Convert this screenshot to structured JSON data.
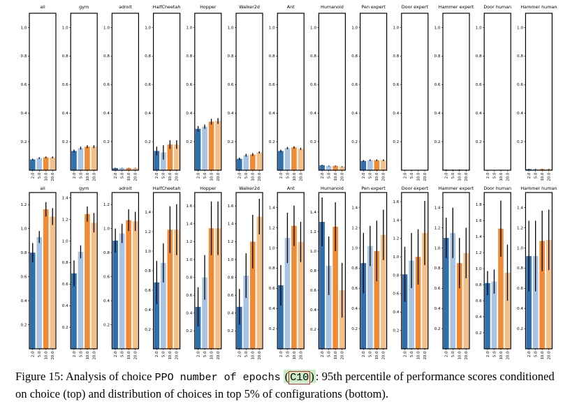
{
  "caption": {
    "lead": "Figure 15: Analysis of choice ",
    "choice_name": "PPO number of epochs",
    "paren_open": "(",
    "choice_id": "C10",
    "paren_close": ")",
    "rest": ": 95th percentile of performance scores conditioned on choice (top) and distribution of choices in top 5% of configurations (bottom)."
  },
  "colors": [
    "#2f6fae",
    "#a9c4e3",
    "#ef8b34",
    "#f4bf88"
  ],
  "chart_data": [
    {
      "row": "top",
      "type": "bar",
      "categories": [
        "2.0",
        "5.0",
        "10.0",
        "20.0"
      ],
      "yticks": [
        0.2,
        0.4,
        0.6,
        0.8,
        1.0
      ],
      "ylim": [
        0,
        1.1
      ],
      "panels": [
        {
          "title": "all",
          "values": [
            0.075,
            0.085,
            0.09,
            0.09
          ],
          "err": [
            0.006,
            0.006,
            0.006,
            0.006
          ]
        },
        {
          "title": "gym",
          "values": [
            0.135,
            0.155,
            0.165,
            0.165
          ],
          "err": [
            0.01,
            0.01,
            0.01,
            0.01
          ]
        },
        {
          "title": "adroit",
          "values": [
            0.015,
            0.015,
            0.015,
            0.015
          ],
          "err": [
            0.002,
            0.002,
            0.002,
            0.002
          ]
        },
        {
          "title": "HalfCheetah",
          "values": [
            0.135,
            0.125,
            0.18,
            0.18
          ],
          "err": [
            0.03,
            0.05,
            0.03,
            0.03
          ]
        },
        {
          "title": "Hopper",
          "values": [
            0.29,
            0.305,
            0.34,
            0.345
          ],
          "err": [
            0.02,
            0.015,
            0.02,
            0.02
          ]
        },
        {
          "title": "Walker2d",
          "values": [
            0.08,
            0.105,
            0.11,
            0.125
          ],
          "err": [
            0.008,
            0.01,
            0.01,
            0.008
          ]
        },
        {
          "title": "Ant",
          "values": [
            0.135,
            0.155,
            0.16,
            0.15
          ],
          "err": [
            0.008,
            0.008,
            0.008,
            0.008
          ]
        },
        {
          "title": "Humanoid",
          "values": [
            0.035,
            0.03,
            0.03,
            0.025
          ],
          "err": [
            0.003,
            0.003,
            0.003,
            0.003
          ]
        },
        {
          "title": "Pen expert",
          "values": [
            0.065,
            0.07,
            0.07,
            0.07
          ],
          "err": [
            0.006,
            0.006,
            0.006,
            0.006
          ]
        },
        {
          "title": "Door expert",
          "values": [
            0.002,
            0.002,
            0.002,
            0.002
          ],
          "err": [
            0,
            0,
            0,
            0
          ]
        },
        {
          "title": "Hammer expert",
          "values": [
            0.004,
            0.004,
            0.004,
            0.004
          ],
          "err": [
            0.001,
            0.001,
            0.001,
            0.001
          ]
        },
        {
          "title": "Door human",
          "values": [
            0.002,
            0.002,
            0.003,
            0.002
          ],
          "err": [
            0,
            0,
            0,
            0
          ]
        },
        {
          "title": "Hammer human",
          "values": [
            0.008,
            0.008,
            0.008,
            0.008
          ],
          "err": [
            0.002,
            0.002,
            0.002,
            0.002
          ]
        }
      ]
    },
    {
      "row": "bottom",
      "type": "bar",
      "categories": [
        "2.0",
        "5.0",
        "10.0",
        "20.0"
      ],
      "panels": [
        {
          "title": "all",
          "yticks": [
            0.2,
            0.4,
            0.6,
            0.8,
            1.0,
            1.2
          ],
          "ymax": 1.3,
          "values": [
            0.8,
            0.93,
            1.16,
            1.1
          ],
          "err": [
            0.08,
            0.05,
            0.06,
            0.07
          ]
        },
        {
          "title": "gym",
          "yticks": [
            0.2,
            0.4,
            0.6,
            0.8,
            1.0,
            1.2,
            1.4
          ],
          "ymax": 1.45,
          "values": [
            0.7,
            0.9,
            1.25,
            1.17
          ],
          "err": [
            0.12,
            0.06,
            0.07,
            0.09
          ]
        },
        {
          "title": "adroit",
          "yticks": [
            0.2,
            0.4,
            0.6,
            0.8,
            1.0,
            1.2
          ],
          "ymax": 1.3,
          "values": [
            0.9,
            0.96,
            1.07,
            1.06
          ],
          "err": [
            0.1,
            0.08,
            0.09,
            0.08
          ]
        },
        {
          "title": "HalfCheetah",
          "yticks": [
            0.2,
            0.4,
            0.6,
            0.8,
            1.0,
            1.2,
            1.4
          ],
          "ymax": 1.6,
          "values": [
            0.68,
            0.88,
            1.22,
            1.22
          ],
          "err": [
            0.22,
            0.2,
            0.24,
            0.26
          ]
        },
        {
          "title": "Hopper",
          "yticks": [
            0.2,
            0.4,
            0.6,
            0.8,
            1.0,
            1.2,
            1.4,
            1.6
          ],
          "ymax": 1.75,
          "values": [
            0.47,
            0.8,
            1.35,
            1.35
          ],
          "err": [
            0.22,
            0.25,
            0.3,
            0.3
          ]
        },
        {
          "title": "Walker2d",
          "yticks": [
            0.2,
            0.4,
            0.6,
            0.8,
            1.0,
            1.2,
            1.4,
            1.6
          ],
          "ymax": 1.75,
          "values": [
            0.47,
            0.82,
            1.2,
            1.48
          ],
          "err": [
            0.2,
            0.25,
            0.3,
            0.2
          ]
        },
        {
          "title": "Ant",
          "yticks": [
            0.2,
            0.4,
            0.6,
            0.8,
            1.0,
            1.2,
            1.4
          ],
          "ymax": 1.55,
          "values": [
            0.63,
            1.1,
            1.22,
            1.06
          ],
          "err": [
            0.2,
            0.25,
            0.2,
            0.2
          ]
        },
        {
          "title": "Humanoid",
          "yticks": [
            0.2,
            0.4,
            0.6,
            0.8,
            1.0,
            1.2,
            1.4
          ],
          "ymax": 1.6,
          "values": [
            1.3,
            0.85,
            1.25,
            0.6
          ],
          "err": [
            0.25,
            0.3,
            0.25,
            0.28
          ]
        },
        {
          "title": "Pen expert",
          "yticks": [
            0.2,
            0.4,
            0.6,
            0.8,
            1.0,
            1.2,
            1.4
          ],
          "ymax": 1.55,
          "values": [
            0.85,
            1.02,
            0.97,
            1.13
          ],
          "err": [
            0.3,
            0.2,
            0.3,
            0.25
          ]
        },
        {
          "title": "Door expert",
          "yticks": [
            0.2,
            0.4,
            0.6,
            0.8,
            1.0,
            1.2,
            1.4,
            1.6
          ],
          "ymax": 1.7,
          "values": [
            0.81,
            0.96,
            1.0,
            1.26
          ],
          "err": [
            0.3,
            0.3,
            0.3,
            0.35
          ]
        },
        {
          "title": "Hammer expert",
          "yticks": [
            0.2,
            0.4,
            0.6,
            0.8,
            1.0,
            1.2,
            1.4
          ],
          "ymax": 1.55,
          "values": [
            1.1,
            1.15,
            0.85,
            0.95
          ],
          "err": [
            0.2,
            0.25,
            0.25,
            0.25
          ]
        },
        {
          "title": "Door human",
          "yticks": [
            0.2,
            0.4,
            0.6,
            0.8,
            1.0,
            1.2,
            1.4,
            1.6,
            1.8
          ],
          "ymax": 1.95,
          "values": [
            0.82,
            0.84,
            1.5,
            0.95
          ],
          "err": [
            0.15,
            0.15,
            0.35,
            0.35
          ]
        },
        {
          "title": "Hammer human",
          "yticks": [
            0.2,
            0.4,
            0.6,
            0.8,
            1.0,
            1.2,
            1.4
          ],
          "ymax": 1.55,
          "values": [
            0.92,
            0.92,
            1.07,
            1.08
          ],
          "err": [
            0.35,
            0.35,
            0.3,
            0.3
          ]
        }
      ]
    }
  ]
}
